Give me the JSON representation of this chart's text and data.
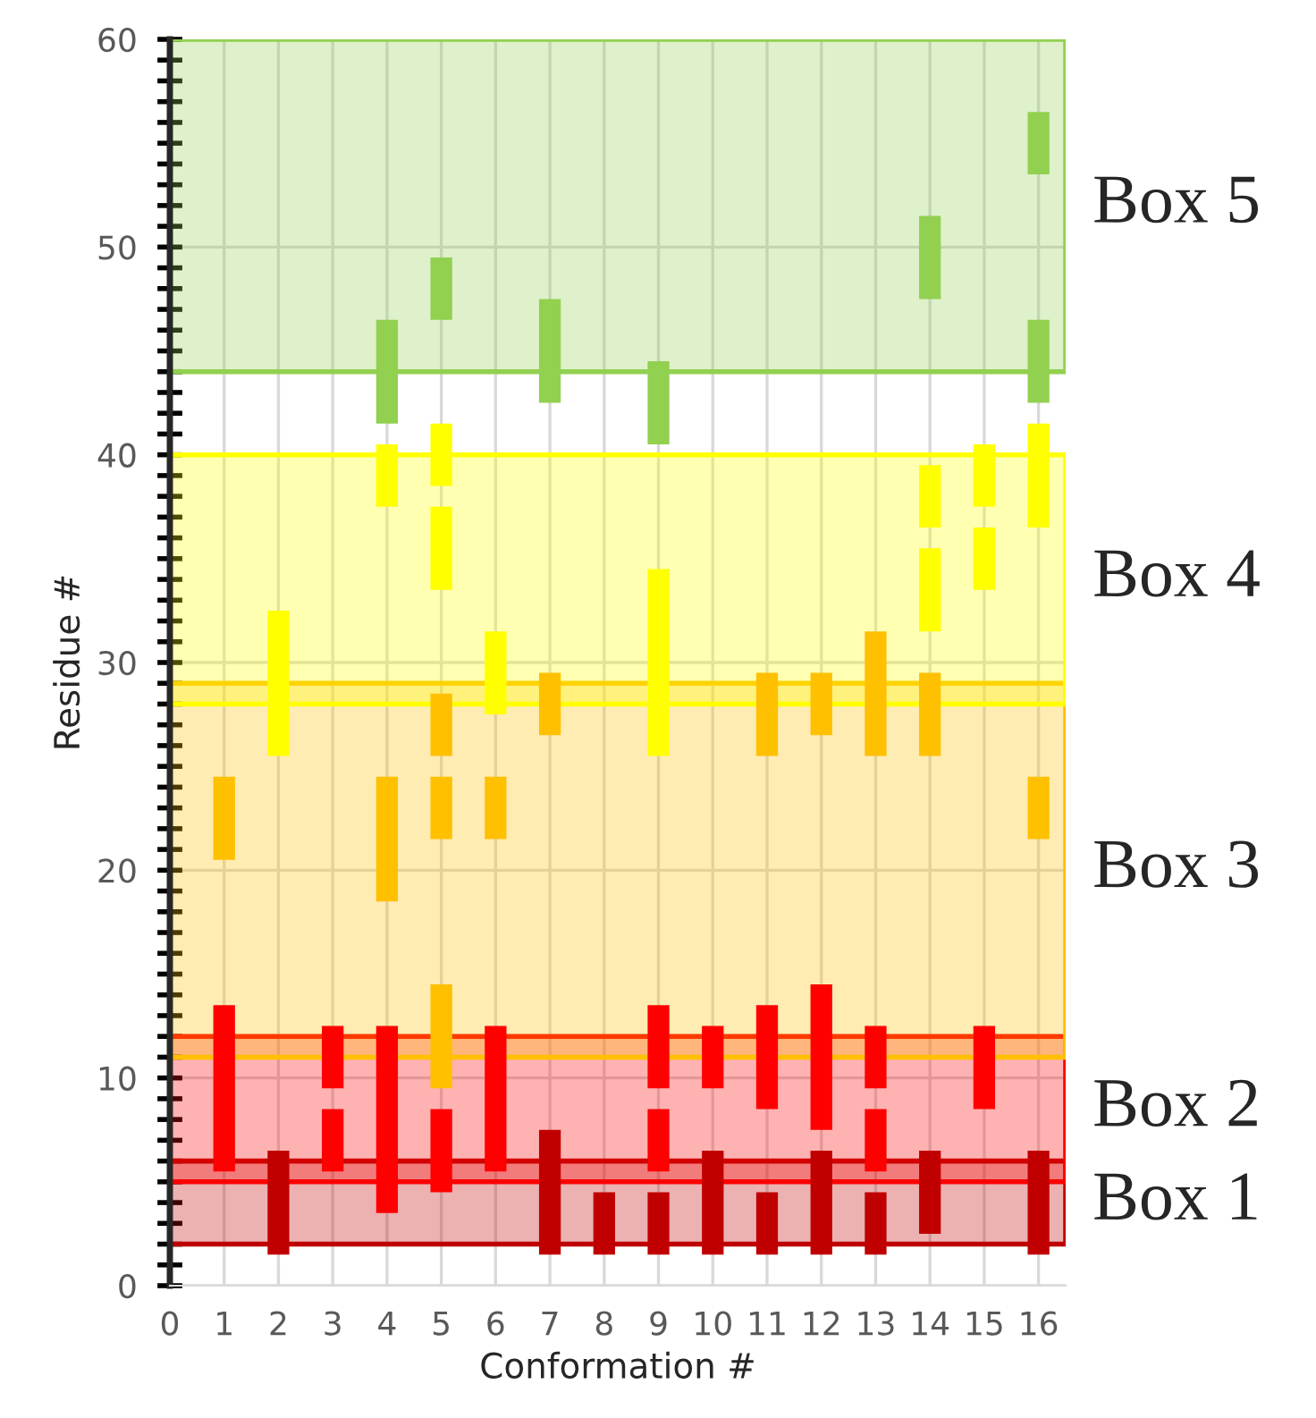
{
  "chart_data": {
    "type": "bar",
    "xlabel": "Conformation #",
    "ylabel": "Residue #",
    "xlim": [
      0,
      16.5
    ],
    "xticks": [
      0,
      1,
      2,
      3,
      4,
      5,
      6,
      7,
      8,
      9,
      10,
      11,
      12,
      13,
      14,
      15,
      16
    ],
    "ylim": [
      0,
      60
    ],
    "yticks": [
      0,
      {
        "value": 1,
        "label": null
      },
      {
        "value": 2,
        "label": null
      },
      {
        "value": 3,
        "label": null
      },
      {
        "value": 4,
        "label": null
      },
      {
        "value": 5,
        "label": null
      },
      {
        "value": 6,
        "label": null
      },
      {
        "value": 7,
        "label": null
      },
      {
        "value": 8,
        "label": null
      },
      {
        "value": 9,
        "label": null
      },
      10,
      {
        "value": 11,
        "label": null
      },
      {
        "value": 12,
        "label": null
      },
      {
        "value": 13,
        "label": null
      },
      {
        "value": 14,
        "label": null
      },
      {
        "value": 15,
        "label": null
      },
      {
        "value": 16,
        "label": null
      },
      {
        "value": 17,
        "label": null
      },
      {
        "value": 18,
        "label": null
      },
      {
        "value": 19,
        "label": null
      },
      20,
      {
        "value": 21,
        "label": null
      },
      {
        "value": 22,
        "label": null
      },
      {
        "value": 23,
        "label": null
      },
      {
        "value": 24,
        "label": null
      },
      {
        "value": 25,
        "label": null
      },
      {
        "value": 26,
        "label": null
      },
      {
        "value": 27,
        "label": null
      },
      {
        "value": 28,
        "label": null
      },
      {
        "value": 29,
        "label": null
      },
      30,
      {
        "value": 31,
        "label": null
      },
      {
        "value": 32,
        "label": null
      },
      {
        "value": 33,
        "label": null
      },
      {
        "value": 34,
        "label": null
      },
      {
        "value": 35,
        "label": null
      },
      {
        "value": 36,
        "label": null
      },
      {
        "value": 37,
        "label": null
      },
      {
        "value": 38,
        "label": null
      },
      {
        "value": 39,
        "label": null
      },
      40,
      {
        "value": 41,
        "label": null
      },
      {
        "value": 42,
        "label": null
      },
      {
        "value": 43,
        "label": null
      },
      {
        "value": 44,
        "label": null
      },
      {
        "value": 45,
        "label": null
      },
      {
        "value": 46,
        "label": null
      },
      {
        "value": 47,
        "label": null
      },
      {
        "value": 48,
        "label": null
      },
      {
        "value": 49,
        "label": null
      },
      50,
      {
        "value": 51,
        "label": null
      },
      {
        "value": 52,
        "label": null
      },
      {
        "value": 53,
        "label": null
      },
      {
        "value": 54,
        "label": null
      },
      {
        "value": 55,
        "label": null
      },
      {
        "value": 56,
        "label": null
      },
      {
        "value": 57,
        "label": null
      },
      {
        "value": 58,
        "label": null
      },
      {
        "value": 59,
        "label": null
      },
      60
    ],
    "grid": true,
    "bands": [
      {
        "axis": "y",
        "from": 2,
        "to": 6,
        "label": "Box 1",
        "color": "#c00000"
      },
      {
        "axis": "y",
        "from": 5,
        "to": 12,
        "label": "Box 2",
        "color": "#ff0000"
      },
      {
        "axis": "y",
        "from": 11,
        "to": 29,
        "label": "Box 3",
        "color": "#ffc000"
      },
      {
        "axis": "y",
        "from": 28,
        "to": 40,
        "label": "Box 4",
        "color": "#ffff00"
      },
      {
        "axis": "y",
        "from": 44,
        "to": 60,
        "label": "Box 5",
        "color": "#92d050"
      }
    ],
    "series": [
      {
        "color": "#c00000",
        "x": [
          2,
          7,
          8,
          9,
          10,
          11,
          12,
          13,
          14,
          16
        ],
        "base": [
          1.5,
          1.5,
          1.5,
          1.5,
          1.5,
          1.5,
          1.5,
          1.5,
          2.5,
          1.5
        ],
        "values": [
          5,
          6,
          3,
          3,
          5,
          3,
          5,
          3,
          4,
          5
        ]
      },
      {
        "color": "#ff0000",
        "x": [
          1,
          3,
          4,
          5,
          6,
          9,
          10,
          11,
          12,
          13,
          15
        ],
        "base": [
          5.5,
          9.5,
          3.5,
          4.5,
          5.5,
          9.5,
          9.5,
          8.5,
          7.5,
          9.5,
          8.5
        ],
        "values": [
          8,
          3,
          9,
          4,
          7,
          4,
          3,
          5,
          7,
          3,
          4
        ]
      },
      {
        "color": "#ff0000",
        "x": [
          3,
          9,
          13
        ],
        "base": [
          5.5,
          5.5,
          5.5
        ],
        "values": [
          3,
          3,
          3
        ]
      },
      {
        "color": "#ffc000",
        "x": [
          1,
          4,
          5,
          6,
          7,
          11,
          12,
          13,
          14,
          16
        ],
        "base": [
          20.5,
          18.5,
          25.5,
          21.5,
          26.5,
          25.5,
          26.5,
          25.5,
          25.5,
          21.5
        ],
        "values": [
          4,
          6,
          3,
          3,
          3,
          4,
          3,
          6,
          4,
          3
        ]
      },
      {
        "color": "#ffc000",
        "x": [
          5
        ],
        "base": [
          21.5
        ],
        "values": [
          3
        ]
      },
      {
        "color": "#ffc000",
        "x": [
          5
        ],
        "base": [
          9.5
        ],
        "values": [
          5
        ]
      },
      {
        "color": "#ffff00",
        "x": [
          2,
          4,
          5,
          6,
          9,
          14,
          15,
          16
        ],
        "base": [
          25.5,
          37.5,
          38.5,
          27.5,
          25.5,
          36.5,
          37.5,
          36.5
        ],
        "values": [
          7,
          3,
          3,
          4,
          9,
          3,
          3,
          5
        ]
      },
      {
        "color": "#ffff00",
        "x": [
          5,
          14,
          15
        ],
        "base": [
          33.5,
          31.5,
          33.5
        ],
        "values": [
          4,
          4,
          3
        ]
      },
      {
        "color": "#92d050",
        "x": [
          4,
          5,
          7,
          9,
          14,
          16
        ],
        "base": [
          41.5,
          46.5,
          42.5,
          40.5,
          47.5,
          53.5
        ],
        "values": [
          5,
          3,
          5,
          4,
          4,
          3
        ]
      },
      {
        "color": "#92d050",
        "x": [
          16
        ],
        "base": [
          42.5
        ],
        "values": [
          4
        ]
      }
    ]
  }
}
